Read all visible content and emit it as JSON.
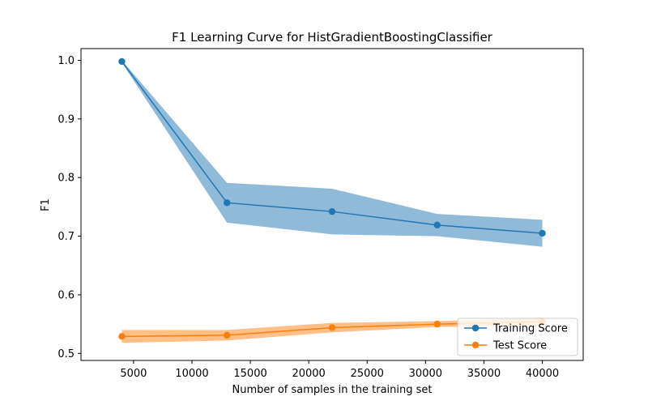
{
  "chart_data": {
    "type": "line",
    "title": "F1 Learning Curve for HistGradientBoostingClassifier",
    "xlabel": "Number of samples in the training set",
    "ylabel": "F1",
    "xlim": [
      500,
      43500
    ],
    "ylim": [
      0.488,
      1.02
    ],
    "xticks": [
      5000,
      10000,
      15000,
      20000,
      25000,
      30000,
      35000,
      40000
    ],
    "yticks": [
      0.5,
      0.6,
      0.7,
      0.8,
      0.9,
      1.0
    ],
    "ytick_labels": [
      "0.5",
      "0.6",
      "0.7",
      "0.8",
      "0.9",
      "1.0"
    ],
    "grid": false,
    "legend_position": "lower-right",
    "x": [
      4000,
      13000,
      22000,
      31000,
      40000
    ],
    "series": [
      {
        "name": "Training Score",
        "color": "#1f77b4",
        "values": [
          0.998,
          0.757,
          0.742,
          0.719,
          0.705
        ],
        "upper": [
          1.0,
          0.791,
          0.781,
          0.738,
          0.728
        ],
        "lower": [
          0.996,
          0.723,
          0.703,
          0.7,
          0.682
        ]
      },
      {
        "name": "Test Score",
        "color": "#ff7f0e",
        "values": [
          0.529,
          0.531,
          0.544,
          0.55,
          0.554
        ],
        "upper": [
          0.54,
          0.54,
          0.552,
          0.555,
          0.561
        ],
        "lower": [
          0.518,
          0.522,
          0.536,
          0.545,
          0.547
        ]
      }
    ]
  }
}
